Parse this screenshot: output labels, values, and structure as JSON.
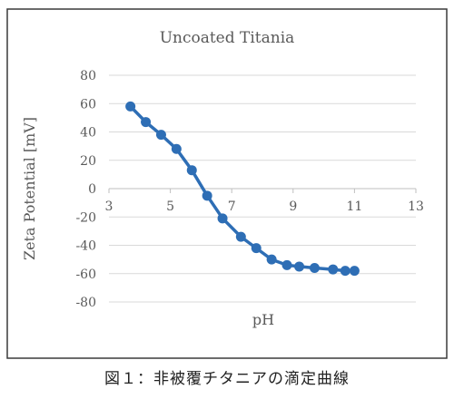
{
  "chart_data": {
    "type": "line",
    "title": "Uncoated Titania",
    "xlabel": "pH",
    "ylabel": "Zeta Potential [mV]",
    "xlim": [
      3,
      13
    ],
    "ylim": [
      -80,
      80
    ],
    "x_ticks": [
      "3",
      "5",
      "7",
      "9",
      "11",
      "13"
    ],
    "y_ticks": [
      "80",
      "60",
      "40",
      "20",
      "0",
      "-20",
      "-40",
      "-60",
      "-80"
    ],
    "x_tick_values": [
      3,
      5,
      7,
      9,
      11,
      13
    ],
    "y_tick_values": [
      80,
      60,
      40,
      20,
      0,
      -20,
      -40,
      -60,
      -80
    ],
    "grid": "horizontal",
    "legend": "none",
    "series": [
      {
        "color": "#2e6eb5",
        "points": [
          {
            "x": 3.7,
            "y": 58
          },
          {
            "x": 4.2,
            "y": 47
          },
          {
            "x": 4.7,
            "y": 38
          },
          {
            "x": 5.2,
            "y": 28
          },
          {
            "x": 5.7,
            "y": 13
          },
          {
            "x": 6.2,
            "y": -5
          },
          {
            "x": 6.7,
            "y": -21
          },
          {
            "x": 7.3,
            "y": -34
          },
          {
            "x": 7.8,
            "y": -42
          },
          {
            "x": 8.3,
            "y": -50
          },
          {
            "x": 8.8,
            "y": -54
          },
          {
            "x": 9.2,
            "y": -55
          },
          {
            "x": 9.7,
            "y": -56
          },
          {
            "x": 10.3,
            "y": -57
          },
          {
            "x": 10.7,
            "y": -58
          },
          {
            "x": 11.0,
            "y": -58
          }
        ]
      }
    ]
  },
  "caption": "図１：非被覆チタニアの滴定曲線"
}
